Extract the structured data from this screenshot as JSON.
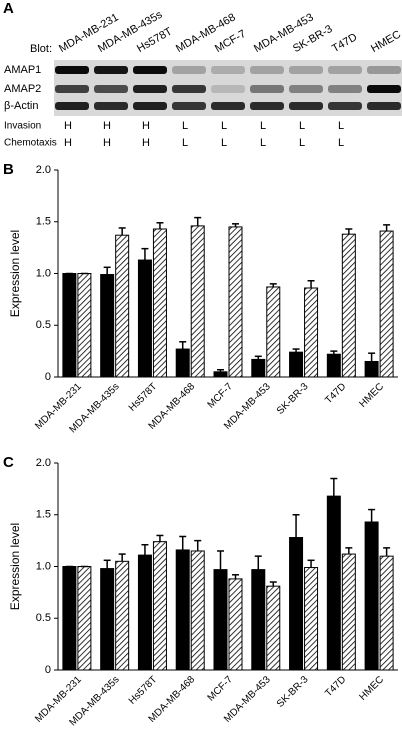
{
  "panel_a": {
    "panel_label": "A",
    "blot_label": "Blot:",
    "lanes": [
      "MDA-MB-231",
      "MDA-MB-435s",
      "Hs578T",
      "MDA-MB-468",
      "MCF-7",
      "MDA-MB-453",
      "SK-BR-3",
      "T47D",
      "HMEC"
    ],
    "rows": [
      "AMAP1",
      "AMAP2",
      "β-Actin"
    ],
    "phenotypes": [
      {
        "name": "Invasion",
        "values": [
          "H",
          "H",
          "H",
          "L",
          "L",
          "L",
          "L",
          "L"
        ]
      },
      {
        "name": "Chemotaxis",
        "values": [
          "H",
          "H",
          "H",
          "L",
          "L",
          "L",
          "L",
          "L"
        ]
      }
    ]
  },
  "chart_data": [
    {
      "type": "bar",
      "panel_label": "B",
      "ylabel": "Expression level",
      "categories": [
        "MDA-MB-231",
        "MDA-MB-435s",
        "Hs578T",
        "MDA-MB-468",
        "MCF-7",
        "MDA-MB-453",
        "SK-BR-3",
        "T47D",
        "HMEC"
      ],
      "series": [
        {
          "color": "#000000",
          "values": [
            1.0,
            0.99,
            1.13,
            0.27,
            0.05,
            0.17,
            0.24,
            0.22,
            0.15
          ],
          "errors": [
            0,
            0.07,
            0.11,
            0.07,
            0.02,
            0.03,
            0.03,
            0.03,
            0.08
          ]
        },
        {
          "color": "#000000",
          "hatch": true,
          "values": [
            1.0,
            1.37,
            1.43,
            1.46,
            1.45,
            0.87,
            0.86,
            1.38,
            1.41
          ],
          "errors": [
            0,
            0.07,
            0.06,
            0.08,
            0.03,
            0.03,
            0.07,
            0.05,
            0.06
          ]
        }
      ],
      "ylim": [
        0,
        2
      ],
      "yticks": [
        0,
        0.5,
        {
          "value": 1,
          "label": "1.0"
        },
        1.5,
        {
          "value": 2,
          "label": "2.0"
        }
      ]
    },
    {
      "type": "bar",
      "panel_label": "C",
      "ylabel": "Expression level",
      "categories": [
        "MDA-MB-231",
        "MDA-MB-435s",
        "Hs578T",
        "MDA-MB-468",
        "MCF-7",
        "MDA-MB-453",
        "SK-BR-3",
        "T47D",
        "HMEC"
      ],
      "series": [
        {
          "color": "#000000",
          "values": [
            1.0,
            0.98,
            1.11,
            1.16,
            0.97,
            0.97,
            1.28,
            1.68,
            1.43
          ],
          "errors": [
            0,
            0.08,
            0.1,
            0.13,
            0.18,
            0.13,
            0.22,
            0.17,
            0.12
          ]
        },
        {
          "color": "#000000",
          "hatch": true,
          "values": [
            1.0,
            1.05,
            1.24,
            1.15,
            0.88,
            0.81,
            0.99,
            1.12,
            1.1
          ],
          "errors": [
            0,
            0.07,
            0.06,
            0.1,
            0.04,
            0.04,
            0.07,
            0.06,
            0.08
          ]
        }
      ],
      "ylim": [
        0,
        2
      ],
      "yticks": [
        0,
        0.5,
        {
          "value": 1,
          "label": "1.0"
        },
        1.5,
        {
          "value": 2,
          "label": "2.0"
        }
      ]
    }
  ]
}
